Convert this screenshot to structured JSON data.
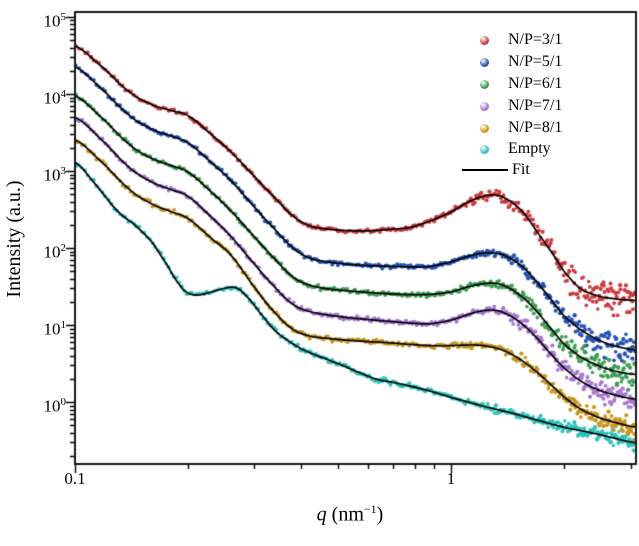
{
  "figure": {
    "background": "#ffffff",
    "frame_color": "#000000"
  },
  "chart_data": {
    "type": "scatter",
    "title": "",
    "x_axis": {
      "label": "q (nm−1)",
      "label_symbol": "q",
      "label_unit_pre": " (nm",
      "label_unit_sup": "−1",
      "label_unit_post": ")",
      "scale": "log",
      "min": 0.1,
      "max": 3.1,
      "major_ticks": [
        0.1,
        1
      ],
      "tick_labels": [
        "0.1",
        "1"
      ],
      "minor_ticks": [
        0.2,
        0.3,
        0.4,
        0.5,
        0.6,
        0.7,
        0.8,
        0.9,
        2,
        3
      ]
    },
    "y_axis": {
      "label": "Intensity (a.u.)",
      "scale": "log",
      "min": 0.157,
      "max": 116000,
      "tick_base": "10",
      "tick_exponents": [
        0,
        1,
        2,
        3,
        4,
        5
      ]
    },
    "legend_position": "upper right",
    "grid": false,
    "fit": {
      "label": "Fit",
      "color": "#000000",
      "line_width": 1.7
    },
    "style": {
      "dot_radius": 1.9
    },
    "series": [
      {
        "name": "N/P=3/1",
        "color": "#cf3a3f",
        "noise": [
          0.013,
          0.125
        ],
        "q": [
          0.1,
          0.12,
          0.14,
          0.16,
          0.18,
          0.2,
          0.23,
          0.26,
          0.3,
          0.34,
          0.38,
          0.42,
          0.47,
          0.52,
          0.6,
          0.68,
          0.78,
          0.88,
          1.0,
          1.1,
          1.2,
          1.3,
          1.4,
          1.55,
          1.7,
          1.85,
          2.0,
          2.2,
          2.45,
          2.7,
          3.05
        ],
        "I": [
          42000,
          21000,
          10500,
          7300,
          6100,
          5200,
          3000,
          1750,
          850,
          450,
          260,
          195,
          176,
          169,
          167,
          174,
          186,
          225,
          292,
          385,
          460,
          490,
          435,
          295,
          158,
          88,
          49,
          30,
          24,
          22,
          21
        ]
      },
      {
        "name": "N/P=5/1",
        "color": "#2553b5",
        "noise": [
          0.013,
          0.1
        ],
        "q": [
          0.1,
          0.12,
          0.14,
          0.16,
          0.18,
          0.2,
          0.23,
          0.26,
          0.3,
          0.34,
          0.38,
          0.42,
          0.47,
          0.52,
          0.6,
          0.68,
          0.78,
          0.88,
          1.0,
          1.1,
          1.2,
          1.3,
          1.4,
          1.55,
          1.7,
          1.85,
          2.0,
          2.2,
          2.45,
          2.7,
          3.05
        ],
        "I": [
          22500,
          10700,
          5200,
          3500,
          2850,
          2300,
          1300,
          740,
          340,
          175,
          100,
          74,
          66,
          62,
          59,
          58,
          57,
          58,
          66,
          77,
          85,
          86,
          78,
          57,
          35,
          21,
          13,
          8.8,
          6.5,
          5.4,
          4.8
        ]
      },
      {
        "name": "N/P=6/1",
        "color": "#3e9e53",
        "noise": [
          0.014,
          0.095
        ],
        "q": [
          0.1,
          0.12,
          0.14,
          0.16,
          0.18,
          0.2,
          0.23,
          0.26,
          0.3,
          0.34,
          0.38,
          0.42,
          0.47,
          0.52,
          0.6,
          0.68,
          0.78,
          0.88,
          1.0,
          1.1,
          1.2,
          1.3,
          1.4,
          1.55,
          1.7,
          1.85,
          2.0,
          2.2,
          2.45,
          2.7,
          3.05
        ],
        "I": [
          9500,
          4540,
          2180,
          1460,
          1180,
          960,
          540,
          300,
          140,
          72,
          42,
          33,
          29.5,
          28,
          26.5,
          25.5,
          24.8,
          25,
          27,
          31,
          34,
          35,
          31.5,
          23,
          14.5,
          8.8,
          5.6,
          3.9,
          3.0,
          2.55,
          2.3
        ]
      },
      {
        "name": "N/P=7/1",
        "color": "#a778d4",
        "noise": [
          0.014,
          0.085
        ],
        "q": [
          0.1,
          0.12,
          0.14,
          0.16,
          0.18,
          0.2,
          0.23,
          0.26,
          0.3,
          0.34,
          0.38,
          0.42,
          0.47,
          0.52,
          0.6,
          0.68,
          0.78,
          0.88,
          1.0,
          1.1,
          1.2,
          1.3,
          1.4,
          1.55,
          1.7,
          1.85,
          2.0,
          2.2,
          2.45,
          2.7,
          3.05
        ],
        "I": [
          5000,
          2330,
          1095,
          720,
          575,
          465,
          255,
          140,
          62,
          31,
          18.5,
          15,
          13.5,
          12.6,
          11.8,
          11.2,
          10.6,
          10.4,
          11.6,
          13.5,
          15.2,
          15.6,
          14,
          10.2,
          6.6,
          4.1,
          2.75,
          1.9,
          1.45,
          1.25,
          1.1
        ]
      },
      {
        "name": "N/P=8/1",
        "color": "#c8971b",
        "noise": [
          0.015,
          0.075
        ],
        "q": [
          0.1,
          0.12,
          0.14,
          0.16,
          0.18,
          0.2,
          0.23,
          0.26,
          0.3,
          0.34,
          0.38,
          0.42,
          0.47,
          0.52,
          0.6,
          0.68,
          0.78,
          0.88,
          1.0,
          1.1,
          1.2,
          1.3,
          1.4,
          1.55,
          1.7,
          1.85,
          2.0,
          2.2,
          2.45,
          2.7,
          3.05
        ],
        "I": [
          2550,
          1200,
          571,
          375,
          298,
          240,
          135,
          80,
          31,
          14.5,
          8.8,
          7.2,
          6.7,
          6.4,
          6.1,
          5.9,
          5.6,
          5.4,
          5.4,
          5.5,
          5.45,
          5.1,
          4.5,
          3.4,
          2.4,
          1.65,
          1.15,
          0.82,
          0.64,
          0.55,
          0.48
        ]
      },
      {
        "name": "Empty",
        "color": "#29c5bb",
        "noise": [
          0.016,
          0.055
        ],
        "q": [
          0.1,
          0.115,
          0.13,
          0.145,
          0.16,
          0.175,
          0.19,
          0.2,
          0.212,
          0.228,
          0.25,
          0.268,
          0.285,
          0.31,
          0.34,
          0.37,
          0.4,
          0.44,
          0.48,
          0.55,
          0.63,
          0.72,
          0.85,
          1.0,
          1.2,
          1.45,
          1.7,
          2.0,
          2.3,
          2.65,
          3.05
        ],
        "I": [
          1300,
          620,
          300,
          195,
          120,
          62,
          33,
          26,
          24.5,
          26.5,
          30,
          30.5,
          24,
          14.5,
          8.5,
          6.2,
          4.9,
          4.0,
          3.4,
          2.6,
          2.0,
          1.75,
          1.45,
          1.15,
          0.9,
          0.72,
          0.58,
          0.47,
          0.41,
          0.35,
          0.3
        ]
      }
    ]
  }
}
